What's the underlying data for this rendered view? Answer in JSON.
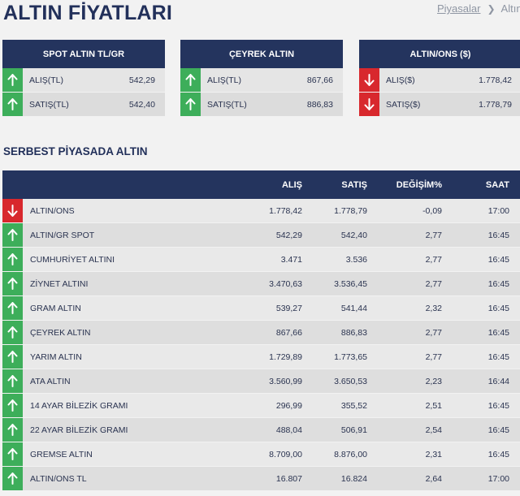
{
  "header": {
    "title": "ALTIN FİYATLARI",
    "breadcrumb": [
      "Piyasalar",
      "Altın"
    ]
  },
  "cards": [
    {
      "title": "SPOT ALTIN TL/GR",
      "rows": [
        {
          "label": "ALIŞ(TL)",
          "value": "542,29",
          "trend": "up"
        },
        {
          "label": "SATIŞ(TL)",
          "value": "542,40",
          "trend": "up"
        }
      ]
    },
    {
      "title": "ÇEYREK ALTIN",
      "rows": [
        {
          "label": "ALIŞ(TL)",
          "value": "867,66",
          "trend": "up"
        },
        {
          "label": "SATIŞ(TL)",
          "value": "886,83",
          "trend": "up"
        }
      ]
    },
    {
      "title": "ALTIN/ONS ($)",
      "rows": [
        {
          "label": "ALIŞ($)",
          "value": "1.778,42",
          "trend": "down"
        },
        {
          "label": "SATIŞ($)",
          "value": "1.778,79",
          "trend": "down"
        }
      ]
    }
  ],
  "section": {
    "title": "SERBEST PİYASADA ALTIN"
  },
  "table": {
    "headers": {
      "alis": "ALIŞ",
      "satis": "SATIŞ",
      "degisim": "DEĞİŞİM%",
      "saat": "SAAT"
    },
    "rows": [
      {
        "name": "ALTIN/ONS",
        "alis": "1.778,42",
        "satis": "1.778,79",
        "degisim": "-0,09",
        "saat": "17:00",
        "trend": "down"
      },
      {
        "name": "ALTIN/GR SPOT",
        "alis": "542,29",
        "satis": "542,40",
        "degisim": "2,77",
        "saat": "16:45",
        "trend": "up"
      },
      {
        "name": "CUMHURİYET ALTINI",
        "alis": "3.471",
        "satis": "3.536",
        "degisim": "2,77",
        "saat": "16:45",
        "trend": "up"
      },
      {
        "name": "ZİYNET ALTINI",
        "alis": "3.470,63",
        "satis": "3.536,45",
        "degisim": "2,77",
        "saat": "16:45",
        "trend": "up"
      },
      {
        "name": "GRAM ALTIN",
        "alis": "539,27",
        "satis": "541,44",
        "degisim": "2,32",
        "saat": "16:45",
        "trend": "up"
      },
      {
        "name": "ÇEYREK ALTIN",
        "alis": "867,66",
        "satis": "886,83",
        "degisim": "2,77",
        "saat": "16:45",
        "trend": "up"
      },
      {
        "name": "YARIM ALTIN",
        "alis": "1.729,89",
        "satis": "1.773,65",
        "degisim": "2,77",
        "saat": "16:45",
        "trend": "up"
      },
      {
        "name": "ATA ALTIN",
        "alis": "3.560,99",
        "satis": "3.650,53",
        "degisim": "2,23",
        "saat": "16:44",
        "trend": "up"
      },
      {
        "name": "14 AYAR BİLEZİK GRAMI",
        "alis": "296,99",
        "satis": "355,52",
        "degisim": "2,51",
        "saat": "16:45",
        "trend": "up"
      },
      {
        "name": "22 AYAR BİLEZİK GRAMI",
        "alis": "488,04",
        "satis": "506,91",
        "degisim": "2,54",
        "saat": "16:45",
        "trend": "up"
      },
      {
        "name": "GREMSE ALTIN",
        "alis": "8.709,00",
        "satis": "8.876,00",
        "degisim": "2,31",
        "saat": "16:45",
        "trend": "up"
      },
      {
        "name": "ALTIN/ONS TL",
        "alis": "16.807",
        "satis": "16.824",
        "degisim": "2,64",
        "saat": "17:00",
        "trend": "up"
      }
    ]
  },
  "colors": {
    "navy": "#24345e",
    "up": "#3dae5a",
    "down": "#d8282d"
  }
}
